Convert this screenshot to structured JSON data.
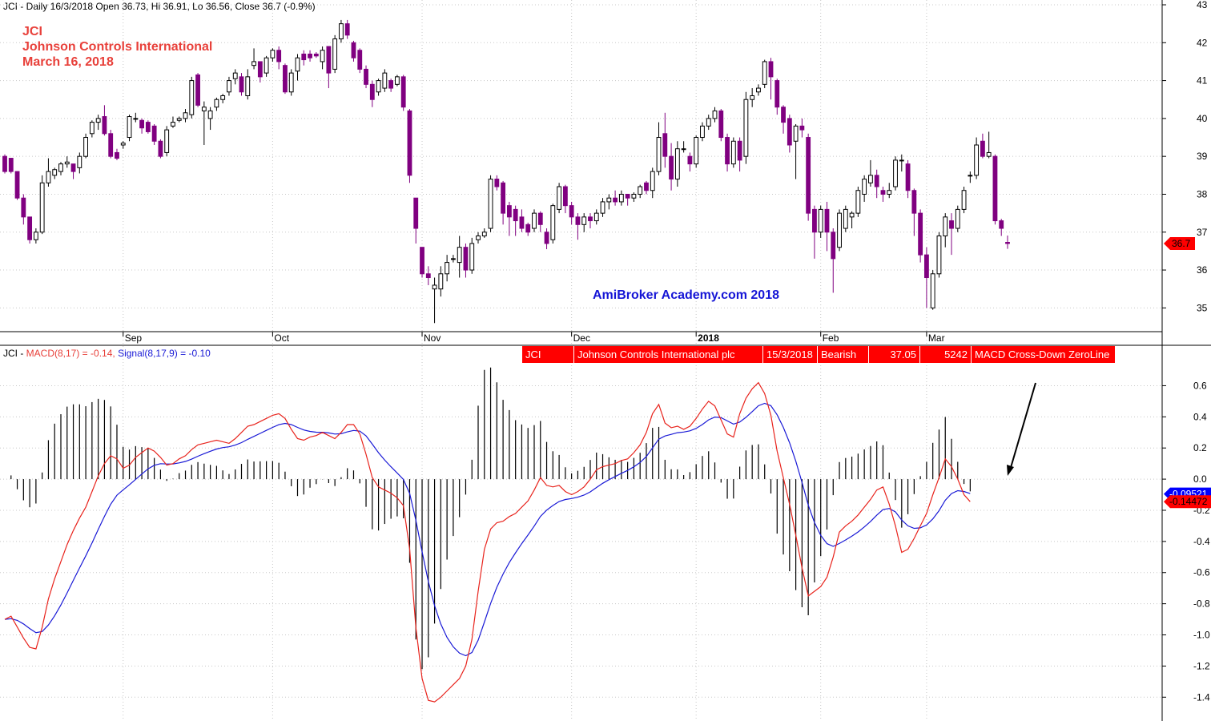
{
  "header": {
    "price_info": "JCI - Daily 16/3/2018 Open 36.73, Hi 36.91, Lo 36.56, Close 36.7 (-0.9%)"
  },
  "annotation": {
    "ticker": "JCI",
    "company": "Johnson Controls International",
    "date": "March 16, 2018",
    "watermark": "AmiBroker Academy.com  2018"
  },
  "alert_bar": {
    "cells": [
      "JCI",
      "Johnson Controls International plc",
      "15/3/2018",
      "Bearish",
      "37.05",
      "5242",
      "MACD Cross-Down ZeroLine"
    ]
  },
  "macd_header": {
    "prefix": "JCI - ",
    "macd_label": "MACD(8,17) = -0.14,",
    "signal_label": "Signal(8,17,9) = -0.10"
  },
  "colors": {
    "bull_candle": "#ffffff",
    "bear_candle": "#800080",
    "macd_line": "#e8231c",
    "signal_line": "#1a1ad6",
    "histogram": "#000000",
    "badge_red": "#ff0000",
    "badge_blue": "#0000ff",
    "title_red": "#e8403a",
    "watermark_blue": "#1515d6"
  },
  "chart_data": [
    {
      "type": "candlestick",
      "title": "JCI - Daily 16/3/2018",
      "x_labels": [
        "Sep",
        "Oct",
        "Nov",
        "Dec",
        "2018",
        "Feb",
        "Mar"
      ],
      "ylim": [
        34.5,
        43
      ],
      "y_ticks": [
        35,
        36,
        37,
        38,
        39,
        40,
        41,
        42,
        43
      ],
      "last_price_badge": "36.7",
      "last_price": 36.7,
      "grid": true,
      "candles": [
        [
          39,
          38.6,
          39.05,
          38.55
        ],
        [
          38.95,
          38.6,
          38.95,
          38.55
        ],
        [
          38.6,
          37.9,
          38.6,
          37.85
        ],
        [
          37.9,
          37.4,
          38.0,
          37.2
        ],
        [
          37.4,
          36.8,
          37.4,
          36.7
        ],
        [
          36.8,
          37.0,
          37.1,
          36.7
        ],
        [
          37.0,
          38.3,
          38.5,
          36.95
        ],
        [
          38.3,
          38.6,
          38.95,
          38.2
        ],
        [
          38.5,
          38.65,
          38.7,
          38.4
        ],
        [
          38.6,
          38.8,
          38.85,
          38.5
        ],
        [
          38.8,
          38.85,
          39.0,
          38.7
        ],
        [
          38.8,
          38.6,
          38.8,
          38.4
        ],
        [
          38.7,
          39.0,
          39.1,
          38.55
        ],
        [
          39.0,
          39.5,
          39.6,
          38.95
        ],
        [
          39.6,
          39.9,
          39.95,
          39.5
        ],
        [
          39.9,
          40.0,
          40.1,
          39.7
        ],
        [
          40.05,
          39.6,
          40.35,
          39.55
        ],
        [
          39.6,
          39.0,
          39.7,
          38.95
        ],
        [
          39.1,
          38.95,
          39.2,
          38.9
        ],
        [
          39.3,
          39.35,
          39.4,
          39.2
        ],
        [
          39.5,
          40.05,
          40.1,
          39.4
        ],
        [
          40.0,
          40.0,
          40.15,
          39.9
        ],
        [
          39.95,
          39.75,
          40.0,
          39.6
        ],
        [
          39.9,
          39.65,
          39.95,
          39.6
        ],
        [
          39.8,
          39.4,
          39.85,
          39.3
        ],
        [
          39.4,
          39.0,
          39.45,
          38.95
        ],
        [
          39.1,
          39.7,
          39.8,
          39.0
        ],
        [
          39.8,
          39.9,
          40.05,
          39.75
        ],
        [
          39.95,
          40.0,
          40.05,
          39.9
        ],
        [
          40.0,
          40.15,
          40.25,
          39.9
        ],
        [
          40.1,
          41.0,
          41.1,
          40.0
        ],
        [
          41.15,
          40.35,
          41.2,
          40.3
        ],
        [
          40.2,
          40.3,
          40.45,
          39.3
        ],
        [
          40.0,
          40.2,
          40.3,
          39.7
        ],
        [
          40.3,
          40.5,
          40.55,
          40.2
        ],
        [
          40.5,
          40.6,
          40.65,
          40.4
        ],
        [
          40.7,
          41.0,
          41.1,
          40.6
        ],
        [
          41.05,
          41.2,
          41.3,
          40.9
        ],
        [
          41.1,
          40.7,
          41.2,
          40.6
        ],
        [
          40.6,
          41.1,
          41.3,
          40.5
        ],
        [
          41.4,
          41.5,
          41.85,
          41.3
        ],
        [
          41.5,
          41.1,
          41.5,
          40.95
        ],
        [
          41.2,
          41.6,
          41.65,
          41.1
        ],
        [
          41.6,
          41.8,
          41.85,
          41.5
        ],
        [
          41.8,
          41.5,
          41.9,
          41.3
        ],
        [
          41.4,
          40.7,
          41.45,
          40.65
        ],
        [
          40.7,
          41.2,
          41.3,
          40.6
        ],
        [
          41.25,
          41.6,
          41.7,
          41.0
        ],
        [
          41.7,
          41.55,
          41.8,
          41.4
        ],
        [
          41.7,
          41.6,
          41.8,
          41.5
        ],
        [
          41.7,
          41.65,
          41.75,
          41.6
        ],
        [
          41.5,
          41.8,
          41.9,
          41.3
        ],
        [
          41.9,
          41.2,
          41.9,
          40.8
        ],
        [
          41.3,
          42.1,
          42.2,
          41.2
        ],
        [
          42.1,
          42.5,
          42.6,
          42.0
        ],
        [
          42.5,
          42.2,
          42.6,
          42.1
        ],
        [
          42.0,
          41.6,
          42.05,
          41.5
        ],
        [
          41.8,
          41.3,
          41.85,
          41.2
        ],
        [
          41.3,
          40.9,
          41.4,
          40.8
        ],
        [
          40.9,
          40.5,
          41.0,
          40.3
        ],
        [
          40.7,
          41.0,
          41.05,
          40.6
        ],
        [
          40.8,
          41.2,
          41.3,
          40.7
        ],
        [
          41.0,
          40.8,
          41.05,
          40.7
        ],
        [
          40.9,
          41.1,
          41.15,
          40.85
        ],
        [
          41.1,
          40.3,
          41.15,
          40.2
        ],
        [
          40.2,
          38.5,
          40.25,
          38.3
        ],
        [
          37.9,
          37.1,
          37.9,
          36.7
        ],
        [
          36.6,
          35.9,
          36.6,
          35.8
        ],
        [
          35.9,
          35.8,
          36.1,
          35.6
        ],
        [
          35.5,
          35.6,
          35.8,
          34.6
        ],
        [
          35.5,
          35.9,
          36.1,
          35.3
        ],
        [
          35.9,
          36.2,
          36.4,
          35.7
        ],
        [
          36.3,
          36.3,
          36.4,
          36.2
        ],
        [
          36.2,
          36.6,
          36.9,
          35.8
        ],
        [
          36.6,
          36.0,
          36.7,
          35.8
        ],
        [
          36.0,
          36.7,
          36.85,
          35.9
        ],
        [
          36.8,
          36.9,
          37.0,
          36.7
        ],
        [
          36.9,
          37.0,
          37.1,
          36.85
        ],
        [
          37.1,
          38.4,
          38.5,
          37.0
        ],
        [
          38.4,
          38.2,
          38.5,
          38.1
        ],
        [
          38.3,
          37.5,
          38.35,
          37.2
        ],
        [
          37.7,
          37.4,
          37.8,
          36.9
        ],
        [
          37.6,
          37.3,
          37.7,
          36.9
        ],
        [
          37.4,
          37.1,
          37.6,
          37.0
        ],
        [
          37.2,
          37.0,
          37.25,
          36.9
        ],
        [
          37.1,
          37.5,
          37.6,
          37.0
        ],
        [
          37.5,
          37.2,
          37.55,
          37.0
        ],
        [
          37.0,
          36.7,
          37.1,
          36.55
        ],
        [
          36.8,
          37.7,
          37.75,
          36.7
        ],
        [
          37.6,
          38.2,
          38.3,
          37.5
        ],
        [
          38.2,
          37.7,
          38.25,
          37.5
        ],
        [
          37.7,
          37.4,
          37.8,
          37.2
        ],
        [
          37.4,
          37.2,
          37.5,
          36.8
        ],
        [
          37.2,
          37.4,
          37.5,
          37.0
        ],
        [
          37.4,
          37.3,
          37.5,
          37.1
        ],
        [
          37.3,
          37.5,
          37.6,
          37.2
        ],
        [
          37.5,
          37.8,
          37.9,
          37.4
        ],
        [
          37.8,
          37.9,
          38.0,
          37.6
        ],
        [
          37.9,
          37.8,
          38.1,
          37.7
        ],
        [
          37.8,
          38.0,
          38.1,
          37.7
        ],
        [
          38.0,
          37.9,
          38.0,
          37.7
        ],
        [
          37.9,
          38.0,
          38.05,
          37.8
        ],
        [
          38.0,
          38.2,
          38.25,
          37.9
        ],
        [
          38.3,
          38.1,
          38.35,
          38.0
        ],
        [
          38.1,
          38.6,
          38.7,
          37.9
        ],
        [
          38.6,
          39.5,
          39.9,
          38.5
        ],
        [
          39.6,
          39.0,
          40.15,
          38.7
        ],
        [
          39.0,
          38.4,
          39.35,
          38.1
        ],
        [
          38.4,
          39.2,
          39.4,
          38.2
        ],
        [
          39.2,
          39.2,
          39.4,
          39.1
        ],
        [
          39.0,
          38.8,
          39.1,
          38.6
        ],
        [
          38.8,
          39.5,
          39.55,
          38.7
        ],
        [
          39.5,
          39.8,
          39.9,
          39.4
        ],
        [
          39.8,
          40.0,
          40.1,
          39.7
        ],
        [
          40.0,
          40.2,
          40.3,
          39.9
        ],
        [
          40.2,
          39.5,
          40.25,
          39.4
        ],
        [
          39.5,
          38.8,
          39.6,
          38.6
        ],
        [
          38.8,
          39.4,
          39.5,
          38.7
        ],
        [
          39.4,
          38.9,
          39.5,
          38.6
        ],
        [
          39.0,
          40.5,
          40.7,
          38.8
        ],
        [
          40.5,
          40.6,
          40.8,
          40.3
        ],
        [
          40.7,
          40.8,
          40.9,
          40.6
        ],
        [
          40.9,
          41.5,
          41.55,
          40.8
        ],
        [
          41.5,
          41.1,
          41.6,
          40.5
        ],
        [
          41.0,
          40.3,
          41.05,
          40.1
        ],
        [
          40.3,
          39.9,
          40.35,
          39.6
        ],
        [
          40.0,
          39.3,
          40.1,
          39.1
        ],
        [
          39.4,
          39.8,
          39.85,
          38.4
        ],
        [
          39.8,
          39.7,
          40.0,
          39.5
        ],
        [
          39.5,
          37.5,
          39.6,
          37.3
        ],
        [
          37.6,
          37.0,
          37.7,
          36.3
        ],
        [
          37.0,
          37.6,
          37.7,
          36.85
        ],
        [
          37.6,
          37.0,
          37.8,
          36.5
        ],
        [
          37.0,
          36.3,
          37.1,
          35.4
        ],
        [
          36.6,
          37.5,
          37.6,
          36.5
        ],
        [
          37.1,
          37.6,
          37.7,
          37.0
        ],
        [
          37.4,
          37.5,
          37.55,
          37.1
        ],
        [
          37.5,
          38.1,
          38.2,
          37.4
        ],
        [
          38.0,
          38.4,
          38.5,
          37.8
        ],
        [
          38.3,
          38.5,
          38.9,
          38.2
        ],
        [
          38.5,
          38.2,
          38.65,
          37.9
        ],
        [
          38.1,
          38.0,
          38.2,
          37.8
        ],
        [
          38.0,
          38.1,
          38.3,
          37.9
        ],
        [
          38.2,
          38.9,
          39.0,
          38.1
        ],
        [
          38.9,
          38.9,
          39.05,
          38.6
        ],
        [
          38.8,
          38.1,
          38.9,
          37.9
        ],
        [
          38.1,
          37.5,
          38.15,
          36.9
        ],
        [
          37.5,
          36.4,
          37.6,
          36.2
        ],
        [
          36.4,
          35.8,
          36.6,
          35.0
        ],
        [
          35.0,
          35.9,
          36.0,
          34.95
        ],
        [
          35.9,
          36.9,
          37.0,
          35.8
        ],
        [
          36.9,
          37.4,
          37.5,
          36.6
        ],
        [
          37.3,
          37.1,
          37.5,
          36.4
        ],
        [
          37.1,
          37.6,
          37.7,
          37.0
        ],
        [
          37.6,
          38.1,
          38.2,
          37.5
        ],
        [
          38.5,
          38.5,
          38.6,
          38.3
        ],
        [
          38.5,
          39.3,
          39.5,
          38.4
        ],
        [
          39.4,
          39.0,
          39.6,
          38.95
        ],
        [
          39.0,
          39.1,
          39.65,
          38.95
        ],
        [
          39.0,
          37.3,
          39.05,
          37.2
        ],
        [
          37.3,
          37.1,
          37.35,
          36.9
        ],
        [
          36.73,
          36.7,
          36.91,
          36.56
        ]
      ]
    },
    {
      "type": "macd",
      "title": "JCI - MACD(8,17) = -0.14, Signal(8,17,9) = -0.10",
      "ylim": [
        -1.45,
        0.7
      ],
      "y_ticks": [
        -1.4,
        -1.2,
        -1.0,
        -0.8,
        -0.6,
        -0.4,
        -0.2,
        0.0,
        0.2,
        0.4,
        0.6
      ],
      "macd_badge": "-0.14472",
      "signal_badge": "-0.09521",
      "macd_last": -0.14472,
      "signal_last": -0.09521,
      "macd": [
        -0.9,
        -0.88,
        -0.95,
        -1.02,
        -1.08,
        -1.09,
        -0.95,
        -0.77,
        -0.64,
        -0.53,
        -0.42,
        -0.33,
        -0.25,
        -0.18,
        -0.08,
        0.02,
        0.1,
        0.15,
        0.13,
        0.07,
        0.09,
        0.14,
        0.17,
        0.2,
        0.18,
        0.14,
        0.09,
        0.1,
        0.13,
        0.15,
        0.19,
        0.22,
        0.23,
        0.24,
        0.25,
        0.24,
        0.23,
        0.26,
        0.3,
        0.34,
        0.35,
        0.37,
        0.39,
        0.41,
        0.42,
        0.39,
        0.32,
        0.26,
        0.25,
        0.27,
        0.28,
        0.3,
        0.28,
        0.26,
        0.3,
        0.35,
        0.35,
        0.29,
        0.16,
        0.01,
        -0.05,
        -0.07,
        -0.09,
        -0.12,
        -0.17,
        -0.45,
        -0.95,
        -1.28,
        -1.42,
        -1.43,
        -1.4,
        -1.36,
        -1.32,
        -1.28,
        -1.2,
        -1.03,
        -0.72,
        -0.45,
        -0.32,
        -0.28,
        -0.27,
        -0.24,
        -0.22,
        -0.18,
        -0.14,
        -0.07,
        0.01,
        -0.04,
        -0.05,
        -0.04,
        -0.08,
        -0.1,
        -0.08,
        -0.05,
        0.0,
        0.06,
        0.08,
        0.09,
        0.1,
        0.12,
        0.13,
        0.17,
        0.22,
        0.3,
        0.42,
        0.48,
        0.36,
        0.33,
        0.34,
        0.32,
        0.34,
        0.39,
        0.45,
        0.5,
        0.47,
        0.38,
        0.29,
        0.27,
        0.42,
        0.52,
        0.58,
        0.62,
        0.55,
        0.41,
        0.18,
        0.01,
        -0.16,
        -0.36,
        -0.57,
        -0.75,
        -0.72,
        -0.69,
        -0.63,
        -0.5,
        -0.34,
        -0.3,
        -0.27,
        -0.23,
        -0.18,
        -0.13,
        -0.07,
        -0.05,
        -0.16,
        -0.3,
        -0.47,
        -0.45,
        -0.38,
        -0.3,
        -0.22,
        -0.1,
        0.01,
        0.13,
        0.08,
        0.0,
        -0.1,
        -0.14472
      ]
    }
  ]
}
